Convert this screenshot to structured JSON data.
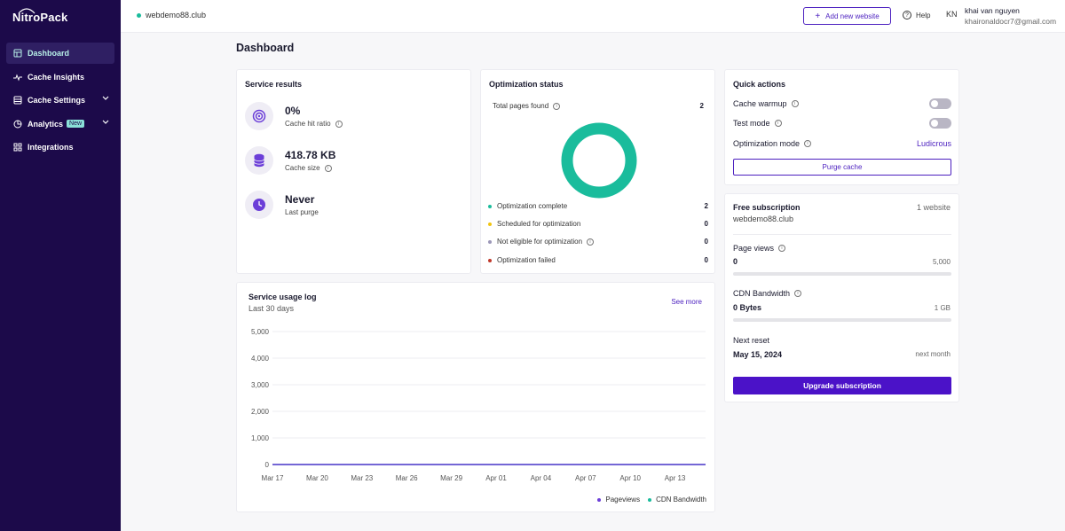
{
  "app": {
    "brand": "NitroPack"
  },
  "sidebar": {
    "items": [
      {
        "label": "Dashboard",
        "active": true,
        "icon": "dashboard-icon"
      },
      {
        "label": "Cache Insights",
        "icon": "pulse-icon"
      },
      {
        "label": "Cache Settings",
        "icon": "database-icon",
        "expandable": true
      },
      {
        "label": "Analytics",
        "icon": "pie-chart-icon",
        "badge": "New",
        "expandable": true
      },
      {
        "label": "Integrations",
        "icon": "grid-icon"
      }
    ]
  },
  "topbar": {
    "site": "webdemo88.club",
    "add_website": "Add new website",
    "help": "Help",
    "avatar_initials": "KN",
    "user_name": "khai van nguyen",
    "user_email": "khaironaldocr7@gmail.com"
  },
  "page_title": "Dashboard",
  "service_results": {
    "title": "Service results",
    "items": [
      {
        "value": "0%",
        "label": "Cache hit ratio",
        "icon": "target-icon"
      },
      {
        "value": "418.78 KB",
        "label": "Cache size",
        "icon": "database-icon"
      },
      {
        "value": "Never",
        "label": "Last purge",
        "icon": "clock-icon"
      }
    ]
  },
  "optimization_status": {
    "title": "Optimization status",
    "total_label": "Total pages found",
    "total_value": "2",
    "rows": [
      {
        "label": "Optimization complete",
        "value": "2",
        "color": "#1abc9c"
      },
      {
        "label": "Scheduled for optimization",
        "value": "0",
        "color": "#f1c40f"
      },
      {
        "label": "Not eligible for optimization",
        "value": "0",
        "color": "#9b97b8"
      },
      {
        "label": "Optimization failed",
        "value": "0",
        "color": "#c0392b"
      }
    ],
    "donut_color": "#1abc9c"
  },
  "quick_actions": {
    "title": "Quick actions",
    "cache_warmup": "Cache warmup",
    "test_mode": "Test mode",
    "optimization_mode": "Optimization mode",
    "optimization_mode_value": "Ludicrous",
    "purge_cache": "Purge cache"
  },
  "subscription": {
    "title": "Free subscription",
    "websites": "1 website",
    "site": "webdemo88.club",
    "page_views_label": "Page views",
    "page_views_value": "0",
    "page_views_limit": "5,000",
    "page_views_fraction": 0,
    "cdn_label": "CDN Bandwidth",
    "cdn_value": "0 Bytes",
    "cdn_limit": "1 GB",
    "cdn_fraction": 0,
    "next_reset_label": "Next reset",
    "next_reset_value": "May 15, 2024",
    "next_reset_note": "next month",
    "upgrade": "Upgrade subscription"
  },
  "usage_log": {
    "title": "Service usage log",
    "subtitle": "Last 30 days",
    "see_more": "See more"
  },
  "chart_data": {
    "type": "line",
    "title": "Service usage log",
    "categories": [
      "Mar 17",
      "Mar 20",
      "Mar 23",
      "Mar 26",
      "Mar 29",
      "Apr 01",
      "Apr 04",
      "Apr 07",
      "Apr 10",
      "Apr 13"
    ],
    "yticks": [
      "5,000",
      "4,000",
      "3,000",
      "2,000",
      "1,000",
      "0"
    ],
    "ylim": [
      0,
      5000
    ],
    "grid": true,
    "legend_position": "bottom-right",
    "series": [
      {
        "name": "Pageviews",
        "color": "#6c3fd8",
        "values": [
          0,
          0,
          0,
          0,
          0,
          0,
          0,
          0,
          0,
          0
        ]
      },
      {
        "name": "CDN Bandwidth",
        "color": "#1abc9c",
        "values": [
          0,
          0,
          0,
          0,
          0,
          0,
          0,
          0,
          0,
          0
        ]
      }
    ]
  }
}
